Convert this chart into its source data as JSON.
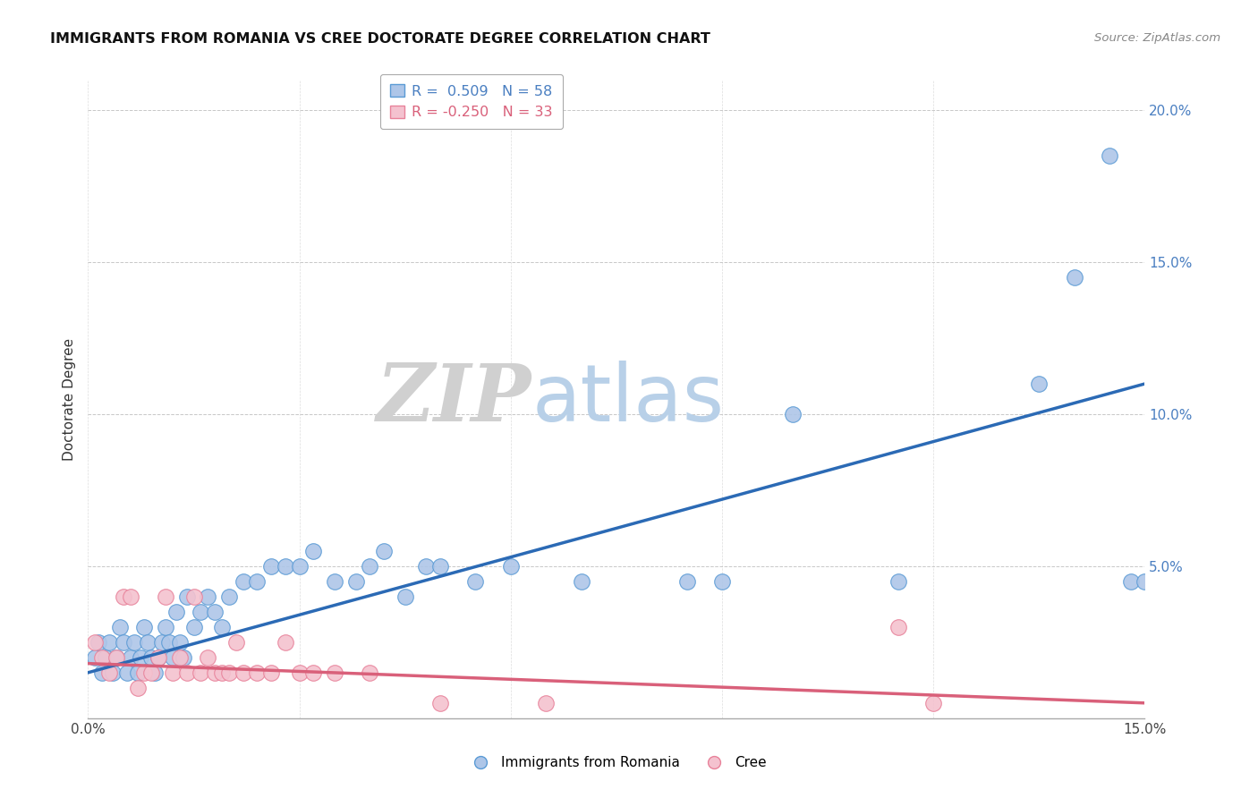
{
  "title": "IMMIGRANTS FROM ROMANIA VS CREE DOCTORATE DEGREE CORRELATION CHART",
  "source": "Source: ZipAtlas.com",
  "ylabel": "Doctorate Degree",
  "xlim": [
    0.0,
    15.0
  ],
  "ylim": [
    0.0,
    21.0
  ],
  "romania_color": "#aec6e8",
  "romania_edge_color": "#5b9bd5",
  "cree_color": "#f4c2cf",
  "cree_edge_color": "#e8829a",
  "romania_line_color": "#2b6ab5",
  "cree_line_color": "#d9607a",
  "legend_romania_R": "0.509",
  "legend_romania_N": "58",
  "legend_cree_R": "-0.250",
  "legend_cree_N": "33",
  "watermark_zip": "ZIP",
  "watermark_atlas": "atlas",
  "romania_scatter_x": [
    0.1,
    0.15,
    0.2,
    0.25,
    0.3,
    0.35,
    0.4,
    0.45,
    0.5,
    0.55,
    0.6,
    0.65,
    0.7,
    0.75,
    0.8,
    0.85,
    0.9,
    0.95,
    1.0,
    1.05,
    1.1,
    1.15,
    1.2,
    1.25,
    1.3,
    1.35,
    1.4,
    1.5,
    1.6,
    1.7,
    1.8,
    1.9,
    2.0,
    2.2,
    2.4,
    2.6,
    2.8,
    3.0,
    3.2,
    3.5,
    3.8,
    4.0,
    4.2,
    4.5,
    4.8,
    5.0,
    5.5,
    6.0,
    7.0,
    8.5,
    9.0,
    10.0,
    11.5,
    13.5,
    14.0,
    14.5,
    14.8,
    15.0
  ],
  "romania_scatter_y": [
    2.0,
    2.5,
    1.5,
    2.0,
    2.5,
    1.5,
    2.0,
    3.0,
    2.5,
    1.5,
    2.0,
    2.5,
    1.5,
    2.0,
    3.0,
    2.5,
    2.0,
    1.5,
    2.0,
    2.5,
    3.0,
    2.5,
    2.0,
    3.5,
    2.5,
    2.0,
    4.0,
    3.0,
    3.5,
    4.0,
    3.5,
    3.0,
    4.0,
    4.5,
    4.5,
    5.0,
    5.0,
    5.0,
    5.5,
    4.5,
    4.5,
    5.0,
    5.5,
    4.0,
    5.0,
    5.0,
    4.5,
    5.0,
    4.5,
    4.5,
    4.5,
    10.0,
    4.5,
    11.0,
    14.5,
    18.5,
    4.5,
    4.5
  ],
  "cree_scatter_x": [
    0.1,
    0.2,
    0.3,
    0.4,
    0.5,
    0.6,
    0.7,
    0.8,
    0.9,
    1.0,
    1.1,
    1.2,
    1.3,
    1.4,
    1.5,
    1.6,
    1.7,
    1.8,
    1.9,
    2.0,
    2.1,
    2.2,
    2.4,
    2.6,
    2.8,
    3.0,
    3.2,
    3.5,
    4.0,
    5.0,
    6.5,
    11.5,
    12.0
  ],
  "cree_scatter_y": [
    2.5,
    2.0,
    1.5,
    2.0,
    4.0,
    4.0,
    1.0,
    1.5,
    1.5,
    2.0,
    4.0,
    1.5,
    2.0,
    1.5,
    4.0,
    1.5,
    2.0,
    1.5,
    1.5,
    1.5,
    2.5,
    1.5,
    1.5,
    1.5,
    2.5,
    1.5,
    1.5,
    1.5,
    1.5,
    0.5,
    0.5,
    3.0,
    0.5
  ],
  "romania_regline_x": [
    0.0,
    15.0
  ],
  "romania_regline_y": [
    1.5,
    11.0
  ],
  "cree_regline_x": [
    0.0,
    15.0
  ],
  "cree_regline_y": [
    1.8,
    0.5
  ]
}
